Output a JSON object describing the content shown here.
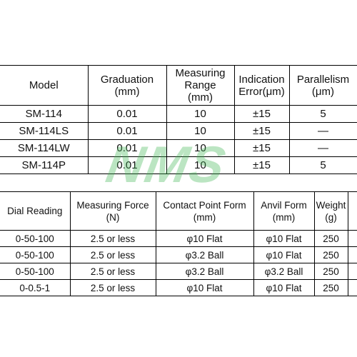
{
  "table1": {
    "columns": [
      "Model",
      "Graduation\n(mm)",
      "Measuring\nRange\n(mm)",
      "Indication\nError(μm)",
      "Parallelism\n(μm)"
    ],
    "rows": [
      [
        "SM-114",
        "0.01",
        "10",
        "±15",
        "5"
      ],
      [
        "SM-114LS",
        "0.01",
        "10",
        "±15",
        "—"
      ],
      [
        "SM-114LW",
        "0.01",
        "10",
        "±15",
        "—"
      ],
      [
        "SM-114P",
        "0.01",
        "10",
        "±15",
        "5"
      ]
    ]
  },
  "table2": {
    "columns": [
      "Dial Reading",
      "Measuring Force\n(N)",
      "Contact Point Form\n(mm)",
      "Anvil Form\n(mm)",
      "Weight\n(g)"
    ],
    "rows": [
      [
        "0-50-100",
        "2.5 or less",
        "φ10 Flat",
        "φ10 Flat",
        "250"
      ],
      [
        "0-50-100",
        "2.5 or less",
        "φ3.2 Ball",
        "φ10 Flat",
        "250"
      ],
      [
        "0-50-100",
        "2.5 or less",
        "φ3.2 Ball",
        "φ3.2 Ball",
        "250"
      ],
      [
        "0-0.5-1",
        "2.5 or less",
        "φ10 Flat",
        "φ10 Flat",
        "250"
      ]
    ]
  },
  "watermark": "NMS"
}
